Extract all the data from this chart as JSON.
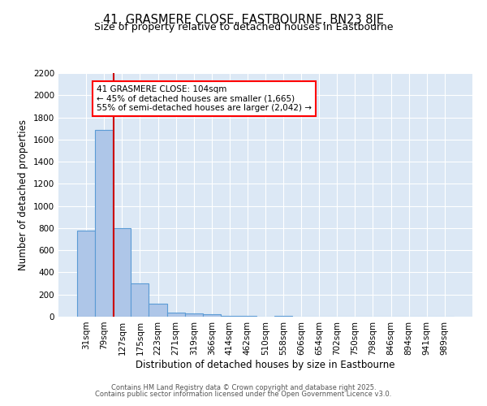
{
  "title": "41, GRASMERE CLOSE, EASTBOURNE, BN23 8JE",
  "subtitle": "Size of property relative to detached houses in Eastbourne",
  "xlabel": "Distribution of detached houses by size in Eastbourne",
  "ylabel": "Number of detached properties",
  "categories": [
    "31sqm",
    "79sqm",
    "127sqm",
    "175sqm",
    "223sqm",
    "271sqm",
    "319sqm",
    "366sqm",
    "414sqm",
    "462sqm",
    "510sqm",
    "558sqm",
    "606sqm",
    "654sqm",
    "702sqm",
    "750sqm",
    "798sqm",
    "846sqm",
    "894sqm",
    "941sqm",
    "989sqm"
  ],
  "values": [
    780,
    1690,
    800,
    300,
    115,
    40,
    30,
    20,
    10,
    10,
    0,
    10,
    0,
    0,
    0,
    0,
    0,
    0,
    0,
    0,
    0
  ],
  "bar_color": "#aec6e8",
  "bar_edge_color": "#5b9bd5",
  "bar_edge_width": 0.8,
  "background_color": "#dce8f5",
  "grid_color": "#ffffff",
  "red_line_x": 1.52,
  "red_line_color": "#cc0000",
  "annotation_line1": "41 GRASMERE CLOSE: 104sqm",
  "annotation_line2": "← 45% of detached houses are smaller (1,665)",
  "annotation_line3": "55% of semi-detached houses are larger (2,042) →",
  "ylim": [
    0,
    2200
  ],
  "yticks": [
    0,
    200,
    400,
    600,
    800,
    1000,
    1200,
    1400,
    1600,
    1800,
    2000,
    2200
  ],
  "footnote1": "Contains HM Land Registry data © Crown copyright and database right 2025.",
  "footnote2": "Contains public sector information licensed under the Open Government Licence v3.0.",
  "title_fontsize": 10.5,
  "subtitle_fontsize": 9,
  "label_fontsize": 8.5,
  "tick_fontsize": 7.5,
  "annotation_fontsize": 7.5,
  "footnote_fontsize": 6.0
}
